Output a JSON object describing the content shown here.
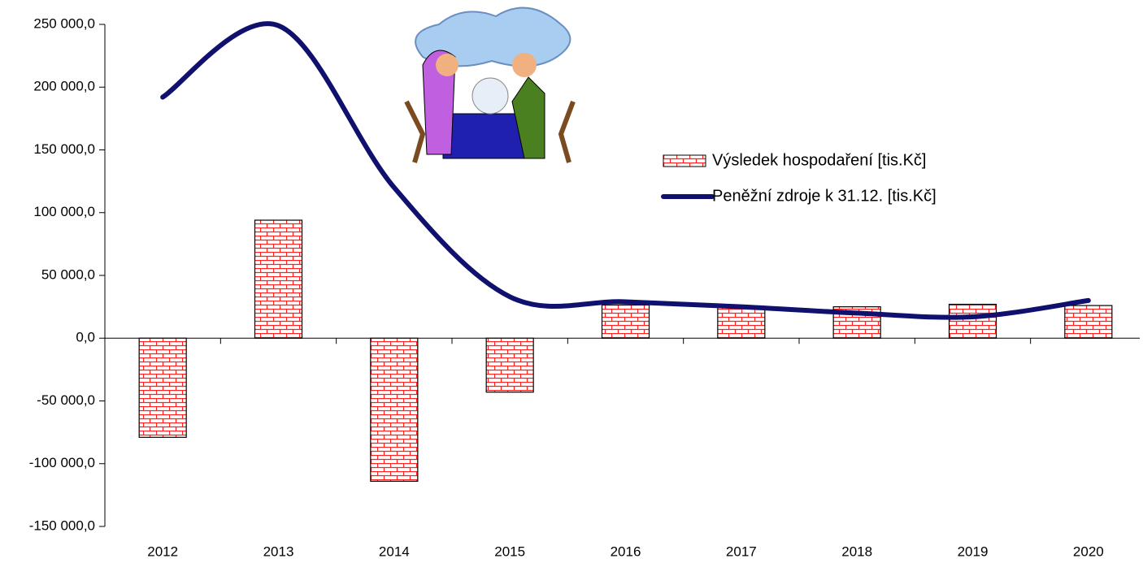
{
  "chart_data": {
    "type": "bar",
    "categories": [
      "2012",
      "2013",
      "2014",
      "2015",
      "2016",
      "2017",
      "2018",
      "2019",
      "2020"
    ],
    "series": [
      {
        "name": "Výsledek hospodaření [tis.Kč]",
        "color": "#ff2020",
        "values": [
          -79000,
          94000,
          -114000,
          -43000,
          26500,
          24600,
          25000,
          27000,
          26000
        ]
      },
      {
        "name": "Peněžní zdroje k 31.12. [tis.Kč]",
        "type": "line",
        "color": "#10106e",
        "values": [
          192000,
          249000,
          120000,
          33000,
          29000,
          25000,
          20000,
          17000,
          30000
        ]
      }
    ],
    "ylim": [
      -150000,
      250000
    ],
    "yticks": [
      {
        "value": -150000,
        "label": "-150 000,0"
      },
      {
        "value": -100000,
        "label": "-100 000,0"
      },
      {
        "value": -50000,
        "label": "-50 000,0"
      },
      {
        "value": 0,
        "label": "0,0"
      },
      {
        "value": 50000,
        "label": "50 000,0"
      },
      {
        "value": 100000,
        "label": "100 000,0"
      },
      {
        "value": 150000,
        "label": "150 000,0"
      },
      {
        "value": 200000,
        "label": "200 000,0"
      },
      {
        "value": 250000,
        "label": "250 000,0"
      }
    ]
  }
}
